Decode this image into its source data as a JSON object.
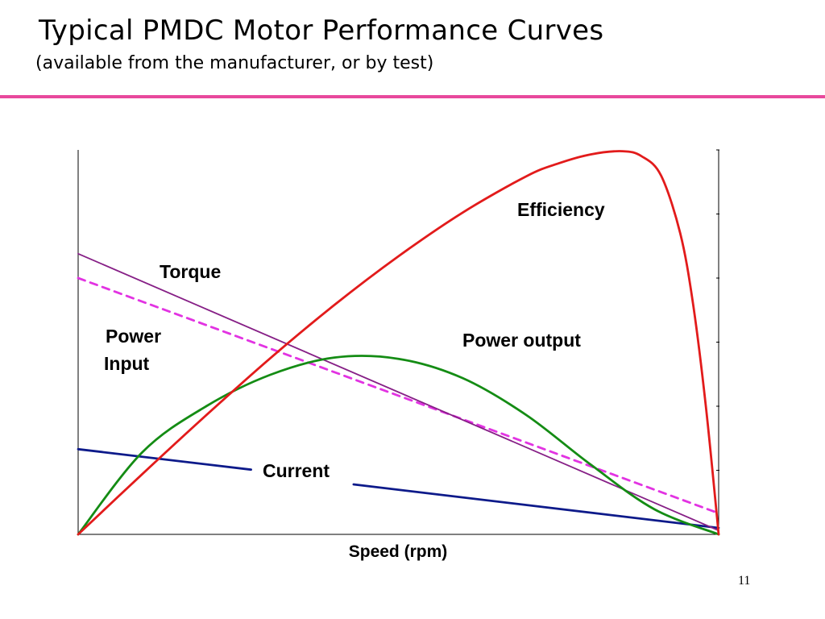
{
  "slide": {
    "title": "Typical PMDC Motor Performance Curves",
    "subtitle": "(available from the manufacturer, or by test)",
    "page_number": "11",
    "rule_color": "#e8489c"
  },
  "chart_data": {
    "type": "line",
    "xlabel": "Speed (rpm)",
    "ylabel": "",
    "xlim": [
      0,
      100
    ],
    "ylim": [
      0,
      60
    ],
    "grid": false,
    "x_ticks_shown": false,
    "y_tick_labels_shown": false,
    "series": [
      {
        "name": "Efficiency",
        "color": "#e21b1b",
        "dash": false,
        "x": [
          0,
          10,
          20,
          30,
          40,
          50,
          60,
          70,
          75,
          80,
          85,
          88,
          91,
          94,
          96,
          98,
          100
        ],
        "y": [
          0,
          9.4,
          18.6,
          27.5,
          35.8,
          43.4,
          50.2,
          55.9,
          57.9,
          59.3,
          59.8,
          59.0,
          56.0,
          47.0,
          36.0,
          20.0,
          0
        ]
      },
      {
        "name": "Power output",
        "color": "#148c14",
        "dash": false,
        "x": [
          0,
          10,
          20,
          30,
          40,
          50,
          60,
          70,
          80,
          90,
          100
        ],
        "y": [
          0,
          12.8,
          20.0,
          24.9,
          27.6,
          27.4,
          24.4,
          18.6,
          10.9,
          3.9,
          0
        ]
      },
      {
        "name": "Torque",
        "color": "#861f86",
        "dash": false,
        "x": [
          0,
          100
        ],
        "y": [
          43.8,
          0.6
        ]
      },
      {
        "name": "Power Input",
        "color": "#e233e2",
        "dash": true,
        "x": [
          0,
          100
        ],
        "y": [
          40.0,
          3.3
        ]
      },
      {
        "name": "Current",
        "color": "#0d1a8a",
        "dash": false,
        "x": [
          0,
          27,
          43,
          100
        ],
        "y": [
          13.3,
          10.1,
          7.8,
          1.0
        ],
        "gap": [
          27,
          43
        ]
      }
    ],
    "labels": [
      {
        "text": "Efficiency",
        "series": "Efficiency"
      },
      {
        "text": "Torque",
        "series": "Torque"
      },
      {
        "text": "Power",
        "series": "Power Input"
      },
      {
        "text": "Input",
        "series": "Power Input"
      },
      {
        "text": "Power output",
        "series": "Power output"
      },
      {
        "text": "Current",
        "series": "Current"
      }
    ]
  }
}
